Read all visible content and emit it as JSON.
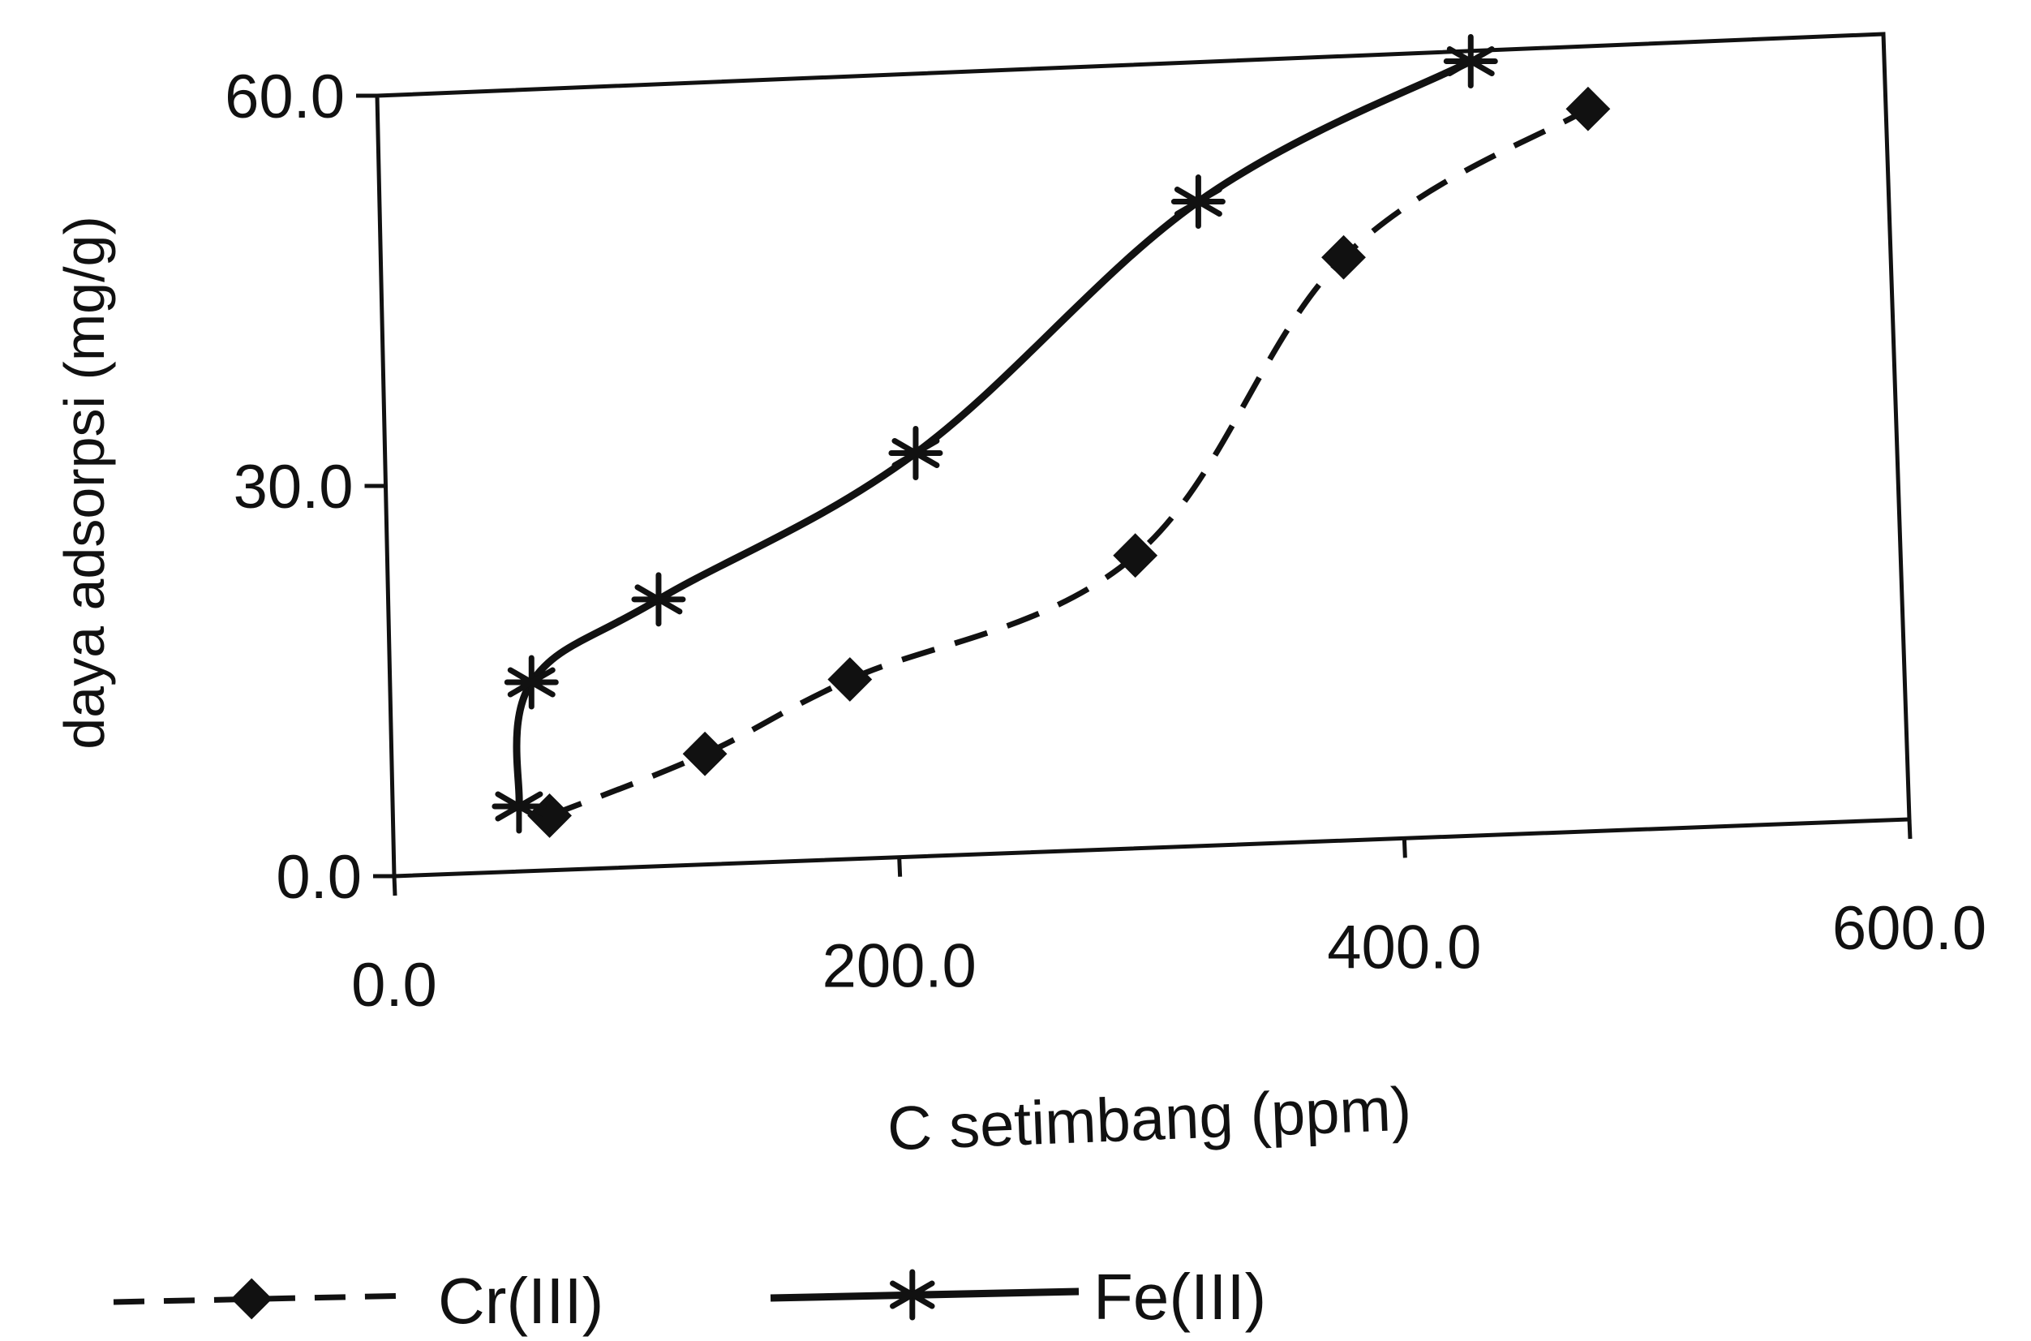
{
  "chart_data": {
    "type": "line",
    "title": "",
    "xlabel": "C setimbang (ppm)",
    "ylabel": "daya adsorpsi (mg/g)",
    "xlim": [
      0,
      600
    ],
    "ylim": [
      0,
      60
    ],
    "x_ticks": [
      0,
      200,
      400,
      600
    ],
    "y_ticks": [
      0,
      30,
      60
    ],
    "x_tick_labels": [
      "0.0",
      "200.0",
      "400.0",
      "600.0"
    ],
    "y_tick_labels": [
      "0.0",
      "30.0",
      "60.0"
    ],
    "grid": false,
    "legend_position": "bottom",
    "series": [
      {
        "name": "Cr(III)",
        "line_style": "dashed",
        "marker": "diamond",
        "color": "#111111",
        "x": [
          62,
          124,
          182,
          296,
          381,
          479
        ],
        "y": [
          4.2,
          8.5,
          13.8,
          22.5,
          44.8,
          55.5
        ]
      },
      {
        "name": "Fe(III)",
        "line_style": "solid",
        "marker": "asterisk",
        "color": "#111111",
        "x": [
          50,
          56,
          107,
          210,
          324,
          433
        ],
        "y": [
          5.0,
          14.5,
          20.5,
          31.0,
          49.5,
          59.5
        ]
      }
    ]
  }
}
